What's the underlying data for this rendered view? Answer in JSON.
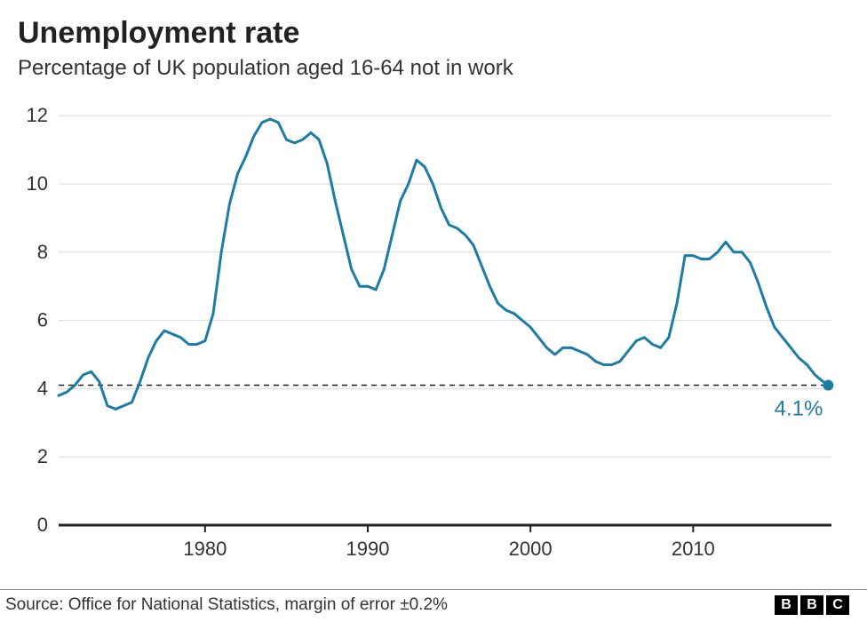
{
  "title": "Unemployment rate",
  "subtitle": "Percentage of UK population aged 16-64 not in work",
  "source": "Source: Office for National Statistics, margin of error ±0.2%",
  "logo_letters": [
    "B",
    "B",
    "C"
  ],
  "chart": {
    "type": "line",
    "x_range": [
      1971,
      2018.5
    ],
    "y_range": [
      0,
      12.5
    ],
    "y_ticks": [
      0,
      2,
      4,
      6,
      8,
      10,
      12
    ],
    "x_ticks": [
      1980,
      1990,
      2000,
      2010
    ],
    "line_color": "#1c7ca6",
    "line_width": 3,
    "grid_color": "#d9d9d9",
    "axis_color": "#222222",
    "background_color": "#ffffff",
    "tick_fontsize": 22,
    "end_marker_color": "#1c7ca6",
    "end_marker_radius": 6,
    "end_label": "4.1%",
    "end_label_color": "#1c7ca6",
    "end_label_fontsize": 24,
    "reference_line_y": 4.1,
    "reference_dash": "6,5",
    "series": [
      [
        1971,
        3.8
      ],
      [
        1971.5,
        3.9
      ],
      [
        1972,
        4.1
      ],
      [
        1972.5,
        4.4
      ],
      [
        1973,
        4.5
      ],
      [
        1973.5,
        4.2
      ],
      [
        1974,
        3.5
      ],
      [
        1974.5,
        3.4
      ],
      [
        1975,
        3.5
      ],
      [
        1975.5,
        3.6
      ],
      [
        1976,
        4.2
      ],
      [
        1976.5,
        4.9
      ],
      [
        1977,
        5.4
      ],
      [
        1977.5,
        5.7
      ],
      [
        1978,
        5.6
      ],
      [
        1978.5,
        5.5
      ],
      [
        1979,
        5.3
      ],
      [
        1979.5,
        5.3
      ],
      [
        1980,
        5.4
      ],
      [
        1980.5,
        6.2
      ],
      [
        1981,
        8.0
      ],
      [
        1981.5,
        9.4
      ],
      [
        1982,
        10.3
      ],
      [
        1982.5,
        10.8
      ],
      [
        1983,
        11.4
      ],
      [
        1983.5,
        11.8
      ],
      [
        1984,
        11.9
      ],
      [
        1984.5,
        11.8
      ],
      [
        1985,
        11.3
      ],
      [
        1985.5,
        11.2
      ],
      [
        1986,
        11.3
      ],
      [
        1986.5,
        11.5
      ],
      [
        1987,
        11.3
      ],
      [
        1987.5,
        10.6
      ],
      [
        1988,
        9.5
      ],
      [
        1988.5,
        8.5
      ],
      [
        1989,
        7.5
      ],
      [
        1989.5,
        7.0
      ],
      [
        1990,
        7.0
      ],
      [
        1990.5,
        6.9
      ],
      [
        1991,
        7.5
      ],
      [
        1991.5,
        8.5
      ],
      [
        1992,
        9.5
      ],
      [
        1992.5,
        10.0
      ],
      [
        1993,
        10.7
      ],
      [
        1993.5,
        10.5
      ],
      [
        1994,
        10.0
      ],
      [
        1994.5,
        9.3
      ],
      [
        1995,
        8.8
      ],
      [
        1995.5,
        8.7
      ],
      [
        1996,
        8.5
      ],
      [
        1996.5,
        8.2
      ],
      [
        1997,
        7.6
      ],
      [
        1997.5,
        7.0
      ],
      [
        1998,
        6.5
      ],
      [
        1998.5,
        6.3
      ],
      [
        1999,
        6.2
      ],
      [
        1999.5,
        6.0
      ],
      [
        2000,
        5.8
      ],
      [
        2000.5,
        5.5
      ],
      [
        2001,
        5.2
      ],
      [
        2001.5,
        5.0
      ],
      [
        2002,
        5.2
      ],
      [
        2002.5,
        5.2
      ],
      [
        2003,
        5.1
      ],
      [
        2003.5,
        5.0
      ],
      [
        2004,
        4.8
      ],
      [
        2004.5,
        4.7
      ],
      [
        2005,
        4.7
      ],
      [
        2005.5,
        4.8
      ],
      [
        2006,
        5.1
      ],
      [
        2006.5,
        5.4
      ],
      [
        2007,
        5.5
      ],
      [
        2007.5,
        5.3
      ],
      [
        2008,
        5.2
      ],
      [
        2008.5,
        5.5
      ],
      [
        2009,
        6.5
      ],
      [
        2009.5,
        7.9
      ],
      [
        2010,
        7.9
      ],
      [
        2010.5,
        7.8
      ],
      [
        2011,
        7.8
      ],
      [
        2011.5,
        8.0
      ],
      [
        2012,
        8.3
      ],
      [
        2012.5,
        8.0
      ],
      [
        2013,
        8.0
      ],
      [
        2013.5,
        7.7
      ],
      [
        2014,
        7.1
      ],
      [
        2014.5,
        6.4
      ],
      [
        2015,
        5.8
      ],
      [
        2015.5,
        5.5
      ],
      [
        2016,
        5.2
      ],
      [
        2016.5,
        4.9
      ],
      [
        2017,
        4.7
      ],
      [
        2017.5,
        4.4
      ],
      [
        2018,
        4.2
      ],
      [
        2018.3,
        4.1
      ]
    ]
  }
}
